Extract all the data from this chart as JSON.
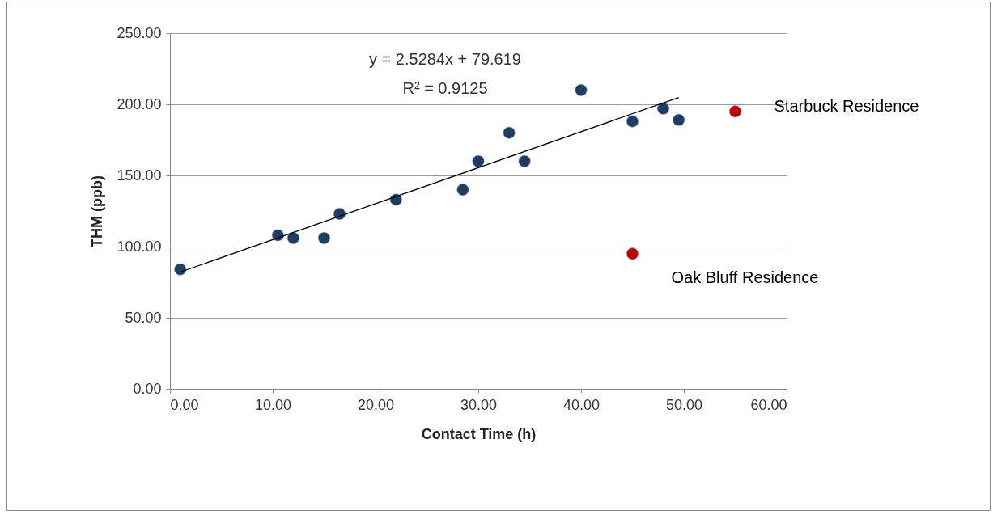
{
  "chart_data": {
    "type": "scatter",
    "xlabel": "Contact Time (h)",
    "ylabel": "THM (ppb)",
    "xlim": [
      0,
      60
    ],
    "ylim": [
      0,
      250
    ],
    "xticks": [
      {
        "value": 0,
        "label": "0.00"
      },
      {
        "value": 10,
        "label": "10.00"
      },
      {
        "value": 20,
        "label": "20.00"
      },
      {
        "value": 30,
        "label": "30.00"
      },
      {
        "value": 40,
        "label": "40.00"
      },
      {
        "value": 50,
        "label": "50.00"
      },
      {
        "value": 60,
        "label": "60.00"
      }
    ],
    "yticks": [
      {
        "value": 0,
        "label": "0.00"
      },
      {
        "value": 50,
        "label": "50.00"
      },
      {
        "value": 100,
        "label": "100.00"
      },
      {
        "value": 150,
        "label": "150.00"
      },
      {
        "value": 200,
        "label": "200.00"
      },
      {
        "value": 250,
        "label": "250.00"
      }
    ],
    "grid": "y",
    "marker": "circle",
    "series": [
      {
        "color": "#1f3d63",
        "x": [
          1,
          10.5,
          12,
          15,
          16.5,
          22,
          28.5,
          30,
          33,
          34.5,
          40,
          45,
          48,
          49.5
        ],
        "values": [
          84,
          108,
          106,
          106,
          123,
          133,
          140,
          160,
          180,
          160,
          210,
          188,
          197,
          189
        ]
      },
      {
        "color": "#c00000",
        "x": [
          45,
          55
        ],
        "values": [
          95,
          195
        ]
      },
      {
        "type": "line",
        "marker": "none",
        "color": "#000000",
        "x": [
          1,
          49.5
        ],
        "values": [
          82.1,
          204.8
        ]
      }
    ],
    "annotations": [
      "y = 2.5284x + 79.619",
      "R² = 0.9125",
      {
        "text": "Starbuck Residence",
        "x": 55,
        "y": 195
      },
      {
        "text": "Oak Bluff Residence",
        "x": 45,
        "y": 95
      }
    ]
  }
}
